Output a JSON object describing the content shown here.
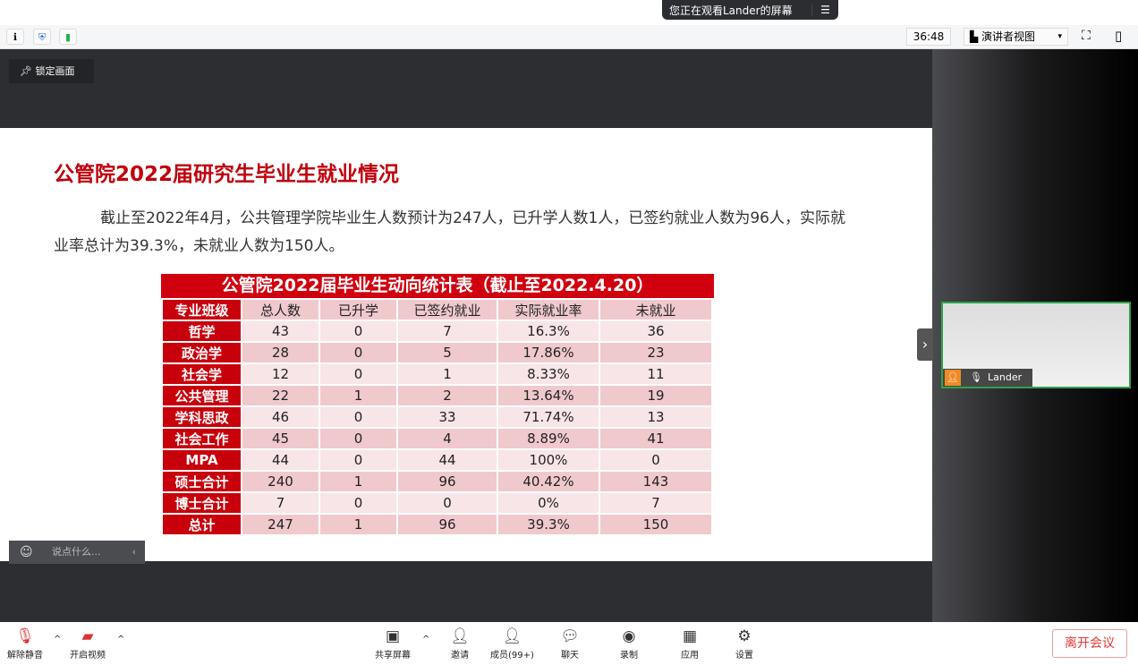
{
  "toast": {
    "text": "您正在观看Lander的屏幕",
    "menu_icon": "☰"
  },
  "topbar": {
    "timer": "36:48",
    "view_mode": "演讲者视图"
  },
  "lock_label": "锁定画面",
  "slide": {
    "title": "公管院2022届研究生毕业生就业情况",
    "paragraph": "截止至2022年4月，公共管理学院毕业生人数预计为247人，已升学人数1人，已签约就业人数为96人，实际就业率总计为39.3%，未就业人数为150人。",
    "table_title": "公管院2022届毕业生动向统计表（截止至2022.4.20）",
    "headers": [
      "专业班级",
      "总人数",
      "已升学",
      "已签约就业",
      "实际就业率",
      "未就业"
    ],
    "rows": [
      [
        "哲学",
        "43",
        "0",
        "7",
        "16.3%",
        "36"
      ],
      [
        "政治学",
        "28",
        "0",
        "5",
        "17.86%",
        "23"
      ],
      [
        "社会学",
        "12",
        "0",
        "1",
        "8.33%",
        "11"
      ],
      [
        "公共管理",
        "22",
        "1",
        "2",
        "13.64%",
        "19"
      ],
      [
        "学科思政",
        "46",
        "0",
        "33",
        "71.74%",
        "13"
      ],
      [
        "社会工作",
        "45",
        "0",
        "4",
        "8.89%",
        "41"
      ],
      [
        "MPA",
        "44",
        "0",
        "44",
        "100%",
        "0"
      ],
      [
        "硕士合计",
        "240",
        "1",
        "96",
        "40.42%",
        "143"
      ],
      [
        "博士合计",
        "7",
        "0",
        "0",
        "0%",
        "7"
      ],
      [
        "总计",
        "247",
        "1",
        "96",
        "39.3%",
        "150"
      ]
    ]
  },
  "chat_placeholder": "说点什么...",
  "video": {
    "name": "Lander"
  },
  "bottom": {
    "mute": "解除静音",
    "video": "开启视频",
    "share": "共享屏幕",
    "invite": "邀请",
    "members": "成员(99+)",
    "chat": "聊天",
    "record": "录制",
    "apps": "应用",
    "settings": "设置",
    "leave": "离开会议"
  },
  "colors": {
    "accent_red": "#c8000b",
    "stage": "#2c2e31"
  }
}
